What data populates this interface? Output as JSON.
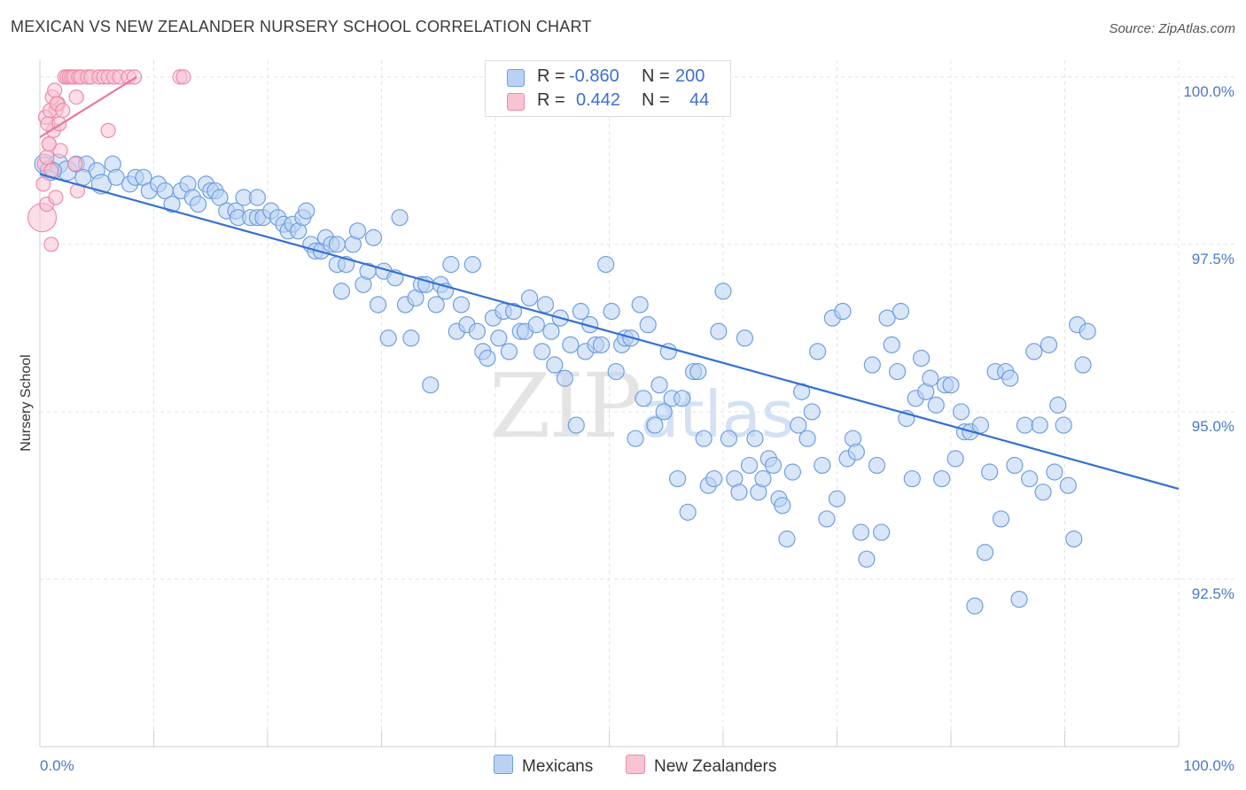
{
  "title": "MEXICAN VS NEW ZEALANDER NURSERY SCHOOL CORRELATION CHART",
  "source": "Source: ZipAtlas.com",
  "watermark": {
    "zip": "ZIP",
    "atlas": "atlas"
  },
  "colors": {
    "blue": "#6f9fe0",
    "blue_fill": "#b9d2f3",
    "blue_line": "#3370d2",
    "pink": "#ef8aa8",
    "pink_fill": "#f8c3d3",
    "pink_line": "#e9769b",
    "grid": "#e3e3e3",
    "tick_text": "#4a78c9"
  },
  "legend": {
    "rows": [
      {
        "r_label": "R = ",
        "r_value": "-0.860",
        "n_label": "N = ",
        "n_value": "200"
      },
      {
        "r_label": "R = ",
        "r_value": "0.442",
        "n_label": "N = ",
        "n_value": "44"
      }
    ]
  },
  "bottom_legend": {
    "mexicans": "Mexicans",
    "new_zealanders": "New Zealanders"
  },
  "chart_data": {
    "type": "scatter",
    "title": "MEXICAN VS NEW ZEALANDER NURSERY SCHOOL CORRELATION CHART",
    "xlabel": "",
    "ylabel": "Nursery School",
    "xlim": [
      0,
      100
    ],
    "ylim": [
      90.0,
      100.25
    ],
    "x_tick_labels": [
      "0.0%",
      "100.0%"
    ],
    "y_ticks": [
      {
        "value": 100.0,
        "label": "100.0%"
      },
      {
        "value": 97.5,
        "label": "97.5%"
      },
      {
        "value": 95.0,
        "label": "95.0%"
      },
      {
        "value": 92.5,
        "label": "92.5%"
      }
    ],
    "grid": true,
    "series": [
      {
        "name": "Mexicans",
        "color": "#6f9fe0",
        "r": -0.86,
        "n": 200,
        "trend": {
          "x": [
            0,
            100
          ],
          "y": [
            98.55,
            93.85
          ]
        },
        "points": [
          [
            0.4,
            98.7
          ],
          [
            0.9,
            98.6
          ],
          [
            1.6,
            98.7
          ],
          [
            2.4,
            98.6
          ],
          [
            3.2,
            98.7
          ],
          [
            4.1,
            98.7
          ],
          [
            5.0,
            98.6
          ],
          [
            6.4,
            98.7
          ],
          [
            1.2,
            98.6
          ],
          [
            3.8,
            98.5
          ],
          [
            5.4,
            98.4
          ],
          [
            6.7,
            98.5
          ],
          [
            7.9,
            98.4
          ],
          [
            8.4,
            98.5
          ],
          [
            9.1,
            98.5
          ],
          [
            9.6,
            98.3
          ],
          [
            10.4,
            98.4
          ],
          [
            11.0,
            98.3
          ],
          [
            11.6,
            98.1
          ],
          [
            12.4,
            98.3
          ],
          [
            13.0,
            98.4
          ],
          [
            13.4,
            98.2
          ],
          [
            13.9,
            98.1
          ],
          [
            14.6,
            98.4
          ],
          [
            15.0,
            98.3
          ],
          [
            15.4,
            98.3
          ],
          [
            15.8,
            98.2
          ],
          [
            16.4,
            98.0
          ],
          [
            17.2,
            98.0
          ],
          [
            17.4,
            97.9
          ],
          [
            17.9,
            98.2
          ],
          [
            18.5,
            97.9
          ],
          [
            19.1,
            97.9
          ],
          [
            19.1,
            98.2
          ],
          [
            19.6,
            97.9
          ],
          [
            20.3,
            98.0
          ],
          [
            20.9,
            97.9
          ],
          [
            21.4,
            97.8
          ],
          [
            21.8,
            97.7
          ],
          [
            22.2,
            97.8
          ],
          [
            22.7,
            97.7
          ],
          [
            23.1,
            97.9
          ],
          [
            23.4,
            98.0
          ],
          [
            23.8,
            97.5
          ],
          [
            24.2,
            97.4
          ],
          [
            24.7,
            97.4
          ],
          [
            25.1,
            97.6
          ],
          [
            25.6,
            97.5
          ],
          [
            26.1,
            97.2
          ],
          [
            26.1,
            97.5
          ],
          [
            26.5,
            96.8
          ],
          [
            26.9,
            97.2
          ],
          [
            27.5,
            97.5
          ],
          [
            27.9,
            97.7
          ],
          [
            28.4,
            96.9
          ],
          [
            28.8,
            97.1
          ],
          [
            29.3,
            97.6
          ],
          [
            29.7,
            96.6
          ],
          [
            30.2,
            97.1
          ],
          [
            30.6,
            96.1
          ],
          [
            31.2,
            97.0
          ],
          [
            31.6,
            97.9
          ],
          [
            32.1,
            96.6
          ],
          [
            32.6,
            96.1
          ],
          [
            33.0,
            96.7
          ],
          [
            33.5,
            96.9
          ],
          [
            33.9,
            96.9
          ],
          [
            34.3,
            95.4
          ],
          [
            34.8,
            96.6
          ],
          [
            35.2,
            96.9
          ],
          [
            35.6,
            96.8
          ],
          [
            36.1,
            97.2
          ],
          [
            36.6,
            96.2
          ],
          [
            37.0,
            96.6
          ],
          [
            37.5,
            96.3
          ],
          [
            38.0,
            97.2
          ],
          [
            38.4,
            96.2
          ],
          [
            38.9,
            95.9
          ],
          [
            39.3,
            95.8
          ],
          [
            39.8,
            96.4
          ],
          [
            40.3,
            96.1
          ],
          [
            40.7,
            96.5
          ],
          [
            41.2,
            95.9
          ],
          [
            41.6,
            96.5
          ],
          [
            42.2,
            96.2
          ],
          [
            42.6,
            96.2
          ],
          [
            43.0,
            96.7
          ],
          [
            43.6,
            96.3
          ],
          [
            44.1,
            95.9
          ],
          [
            44.4,
            96.6
          ],
          [
            44.9,
            96.2
          ],
          [
            45.2,
            95.7
          ],
          [
            45.7,
            96.4
          ],
          [
            46.1,
            95.5
          ],
          [
            46.6,
            96.0
          ],
          [
            47.1,
            94.8
          ],
          [
            47.5,
            96.5
          ],
          [
            47.9,
            95.9
          ],
          [
            48.3,
            96.3
          ],
          [
            48.8,
            96.0
          ],
          [
            49.3,
            96.0
          ],
          [
            49.7,
            97.2
          ],
          [
            50.2,
            96.5
          ],
          [
            50.6,
            95.6
          ],
          [
            51.1,
            96.0
          ],
          [
            51.4,
            96.1
          ],
          [
            51.9,
            96.1
          ],
          [
            52.3,
            94.6
          ],
          [
            52.7,
            96.6
          ],
          [
            53.0,
            95.2
          ],
          [
            53.4,
            96.3
          ],
          [
            54.0,
            94.8
          ],
          [
            54.4,
            95.4
          ],
          [
            54.8,
            95.0
          ],
          [
            55.2,
            95.9
          ],
          [
            55.5,
            95.2
          ],
          [
            56.0,
            94.0
          ],
          [
            56.4,
            95.2
          ],
          [
            56.9,
            93.5
          ],
          [
            57.4,
            95.6
          ],
          [
            57.8,
            95.6
          ],
          [
            58.3,
            94.6
          ],
          [
            58.7,
            93.9
          ],
          [
            59.2,
            94.0
          ],
          [
            59.6,
            96.2
          ],
          [
            60.0,
            96.8
          ],
          [
            60.5,
            94.6
          ],
          [
            61.0,
            94.0
          ],
          [
            61.4,
            93.8
          ],
          [
            61.9,
            96.1
          ],
          [
            62.3,
            94.2
          ],
          [
            62.8,
            94.6
          ],
          [
            63.1,
            93.8
          ],
          [
            63.5,
            94.0
          ],
          [
            64.0,
            94.3
          ],
          [
            64.4,
            94.2
          ],
          [
            64.9,
            93.7
          ],
          [
            65.2,
            93.6
          ],
          [
            65.6,
            93.1
          ],
          [
            66.1,
            94.1
          ],
          [
            66.6,
            94.8
          ],
          [
            66.9,
            95.3
          ],
          [
            67.4,
            94.6
          ],
          [
            67.8,
            95.0
          ],
          [
            68.3,
            95.9
          ],
          [
            68.7,
            94.2
          ],
          [
            69.1,
            93.4
          ],
          [
            69.6,
            96.4
          ],
          [
            70.0,
            93.7
          ],
          [
            70.5,
            96.5
          ],
          [
            70.9,
            94.3
          ],
          [
            71.4,
            94.6
          ],
          [
            71.7,
            94.4
          ],
          [
            72.1,
            93.2
          ],
          [
            72.6,
            92.8
          ],
          [
            73.1,
            95.7
          ],
          [
            73.5,
            94.2
          ],
          [
            73.9,
            93.2
          ],
          [
            74.4,
            96.4
          ],
          [
            74.8,
            96.0
          ],
          [
            75.3,
            95.6
          ],
          [
            75.6,
            96.5
          ],
          [
            76.1,
            94.9
          ],
          [
            76.6,
            94.0
          ],
          [
            76.9,
            95.2
          ],
          [
            77.4,
            95.8
          ],
          [
            77.8,
            95.3
          ],
          [
            78.2,
            95.5
          ],
          [
            78.7,
            95.1
          ],
          [
            79.2,
            94.0
          ],
          [
            79.5,
            95.4
          ],
          [
            80.0,
            95.4
          ],
          [
            80.4,
            94.3
          ],
          [
            80.9,
            95.0
          ],
          [
            81.2,
            94.7
          ],
          [
            81.7,
            94.7
          ],
          [
            82.1,
            92.1
          ],
          [
            82.6,
            94.8
          ],
          [
            83.0,
            92.9
          ],
          [
            83.4,
            94.1
          ],
          [
            83.9,
            95.6
          ],
          [
            84.4,
            93.4
          ],
          [
            84.8,
            95.6
          ],
          [
            85.2,
            95.5
          ],
          [
            85.6,
            94.2
          ],
          [
            86.0,
            92.2
          ],
          [
            86.5,
            94.8
          ],
          [
            86.9,
            94.0
          ],
          [
            87.3,
            95.9
          ],
          [
            87.8,
            94.8
          ],
          [
            88.1,
            93.8
          ],
          [
            88.6,
            96.0
          ],
          [
            89.1,
            94.1
          ],
          [
            89.4,
            95.1
          ],
          [
            89.9,
            94.8
          ],
          [
            90.3,
            93.9
          ],
          [
            90.8,
            93.1
          ],
          [
            91.1,
            96.3
          ],
          [
            91.6,
            95.7
          ],
          [
            92.0,
            96.2
          ]
        ]
      },
      {
        "name": "New Zealanders",
        "color": "#ef8aa8",
        "r": 0.442,
        "n": 44,
        "trend": {
          "x": [
            0,
            8.5
          ],
          "y": [
            99.1,
            100.0
          ]
        },
        "points": [
          [
            0.2,
            97.9
          ],
          [
            0.4,
            98.7
          ],
          [
            0.6,
            98.8
          ],
          [
            0.8,
            99.0
          ],
          [
            1.0,
            98.6
          ],
          [
            1.2,
            99.2
          ],
          [
            1.4,
            99.5
          ],
          [
            1.6,
            99.6
          ],
          [
            0.5,
            99.4
          ],
          [
            0.7,
            99.3
          ],
          [
            0.9,
            99.5
          ],
          [
            1.1,
            99.7
          ],
          [
            1.3,
            99.8
          ],
          [
            1.5,
            99.6
          ],
          [
            1.8,
            98.9
          ],
          [
            2.0,
            99.5
          ],
          [
            2.2,
            100.0
          ],
          [
            2.4,
            100.0
          ],
          [
            2.6,
            100.0
          ],
          [
            2.8,
            100.0
          ],
          [
            3.0,
            100.0
          ],
          [
            3.2,
            99.7
          ],
          [
            3.4,
            100.0
          ],
          [
            3.6,
            100.0
          ],
          [
            4.2,
            100.0
          ],
          [
            4.5,
            100.0
          ],
          [
            5.2,
            100.0
          ],
          [
            5.6,
            100.0
          ],
          [
            6.0,
            100.0
          ],
          [
            6.5,
            100.0
          ],
          [
            7.0,
            100.0
          ],
          [
            7.8,
            100.0
          ],
          [
            8.3,
            100.0
          ],
          [
            12.3,
            100.0
          ],
          [
            12.6,
            100.0
          ],
          [
            0.3,
            98.4
          ],
          [
            0.6,
            98.1
          ],
          [
            1.0,
            97.5
          ],
          [
            1.4,
            98.2
          ],
          [
            3.1,
            98.7
          ],
          [
            3.3,
            98.3
          ],
          [
            6.0,
            99.2
          ],
          [
            0.8,
            99.0
          ],
          [
            1.7,
            99.3
          ]
        ]
      }
    ]
  }
}
